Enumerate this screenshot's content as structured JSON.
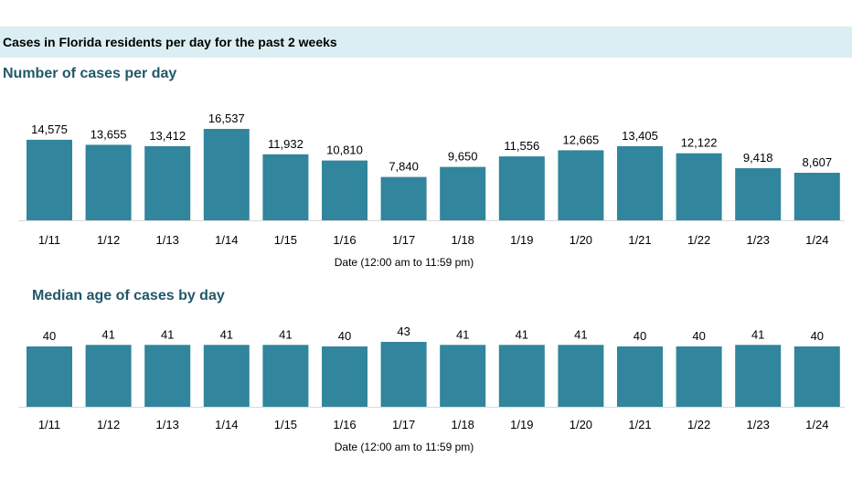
{
  "header": {
    "title": "Cases in Florida residents per day for the past 2 weeks"
  },
  "colors": {
    "bar": "#31859c",
    "banner": "#dbeef3",
    "title": "#215868"
  },
  "chart_data": [
    {
      "type": "bar",
      "title": "Number of cases per day",
      "xlabel": "Date (12:00 am to 11:59 pm)",
      "ylabel": "",
      "categories": [
        "1/11",
        "1/12",
        "1/13",
        "1/14",
        "1/15",
        "1/16",
        "1/17",
        "1/18",
        "1/19",
        "1/20",
        "1/21",
        "1/22",
        "1/23",
        "1/24"
      ],
      "values": [
        14575,
        13655,
        13412,
        16537,
        11932,
        10810,
        7840,
        9650,
        11556,
        12665,
        13405,
        12122,
        9418,
        8607
      ],
      "labels": [
        "14,575",
        "13,655",
        "13,412",
        "16,537",
        "11,932",
        "10,810",
        "7,840",
        "9,650",
        "11,556",
        "12,665",
        "13,405",
        "12,122",
        "9,418",
        "8,607"
      ],
      "ylim": [
        0,
        16537
      ],
      "grid": false,
      "legend": "none"
    },
    {
      "type": "bar",
      "title": "Median age of cases by day",
      "xlabel": "Date (12:00 am to 11:59 pm)",
      "ylabel": "",
      "categories": [
        "1/11",
        "1/12",
        "1/13",
        "1/14",
        "1/15",
        "1/16",
        "1/17",
        "1/18",
        "1/19",
        "1/20",
        "1/21",
        "1/22",
        "1/23",
        "1/24"
      ],
      "values": [
        40,
        41,
        41,
        41,
        41,
        40,
        43,
        41,
        41,
        41,
        40,
        40,
        41,
        40
      ],
      "labels": [
        "40",
        "41",
        "41",
        "41",
        "41",
        "40",
        "43",
        "41",
        "41",
        "41",
        "40",
        "40",
        "41",
        "40"
      ],
      "ylim": [
        0,
        43
      ],
      "grid": false,
      "legend": "none"
    }
  ]
}
